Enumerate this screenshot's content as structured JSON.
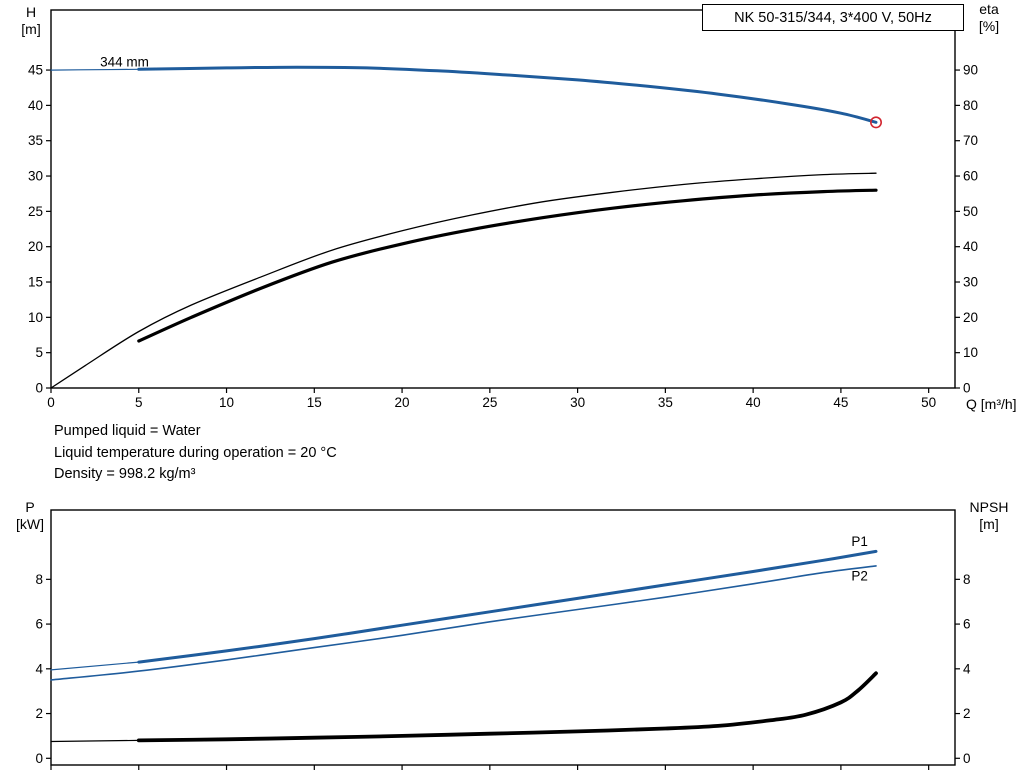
{
  "title_box": {
    "label": "NK 50-315/344, 3*400 V, 50Hz"
  },
  "info": {
    "lines": [
      "Pumped liquid = Water",
      "Liquid temperature during operation = 20 °C",
      "Density = 998.2 kg/m³"
    ]
  },
  "colors": {
    "curve_blue": "#1f5c9c",
    "curve_black": "#000000",
    "marker_red": "#d22630"
  },
  "chart_data": [
    {
      "type": "line",
      "name": "head-efficiency-chart",
      "x_axis": {
        "label": "Q [m³/h]",
        "lim": [
          0,
          51.5
        ],
        "ticks": [
          0,
          5,
          10,
          15,
          20,
          25,
          30,
          35,
          40,
          45,
          50
        ],
        "show_labels": true
      },
      "left_axis": {
        "label_lines": [
          "H",
          "[m]"
        ],
        "lim": [
          0,
          53.5
        ],
        "ticks": [
          0,
          5,
          10,
          15,
          20,
          25,
          30,
          35,
          40,
          45
        ]
      },
      "right_axis": {
        "label_lines": [
          "eta",
          "[%]"
        ],
        "lim": [
          0,
          107
        ],
        "ticks": [
          0,
          10,
          20,
          30,
          40,
          50,
          60,
          70,
          80,
          90
        ]
      },
      "series": [
        {
          "name": "head-344mm-lead",
          "axis": "left",
          "color": "#1f5c9c",
          "width": 1.2,
          "points": [
            [
              0,
              45
            ],
            [
              2.5,
              45.05
            ],
            [
              5,
              45.1
            ]
          ]
        },
        {
          "name": "head-344mm",
          "axis": "left",
          "color": "#1f5c9c",
          "width": 3,
          "points": [
            [
              5,
              45.1
            ],
            [
              10,
              45.3
            ],
            [
              14,
              45.4
            ],
            [
              18,
              45.3
            ],
            [
              22,
              44.9
            ],
            [
              26,
              44.3
            ],
            [
              30,
              43.6
            ],
            [
              34,
              42.7
            ],
            [
              38,
              41.6
            ],
            [
              42,
              40.2
            ],
            [
              45,
              38.9
            ],
            [
              47,
              37.6
            ]
          ]
        },
        {
          "name": "eta-thin",
          "axis": "right",
          "color": "#000000",
          "width": 1.3,
          "points": [
            [
              0,
              0
            ],
            [
              2,
              6.5
            ],
            [
              5,
              16
            ],
            [
              8,
              23.5
            ],
            [
              12,
              31.5
            ],
            [
              16,
              39
            ],
            [
              20,
              44.5
            ],
            [
              24,
              49
            ],
            [
              28,
              52.7
            ],
            [
              32,
              55.4
            ],
            [
              36,
              57.6
            ],
            [
              40,
              59.2
            ],
            [
              44,
              60.4
            ],
            [
              47,
              60.8
            ]
          ]
        },
        {
          "name": "eta-thick",
          "axis": "right",
          "color": "#000000",
          "width": 3.2,
          "points": [
            [
              5,
              13.3
            ],
            [
              8,
              20
            ],
            [
              12,
              28.3
            ],
            [
              16,
              35.6
            ],
            [
              20,
              40.8
            ],
            [
              24,
              44.9
            ],
            [
              28,
              48.2
            ],
            [
              32,
              50.9
            ],
            [
              36,
              53
            ],
            [
              40,
              54.6
            ],
            [
              44,
              55.6
            ],
            [
              47,
              56
            ]
          ]
        }
      ],
      "markers": [
        {
          "name": "duty-point-marker",
          "x": 47,
          "y": 37.6,
          "axis": "left",
          "r": 5.2,
          "color": "#d22630"
        }
      ],
      "annotations": [
        {
          "name": "impeller-diameter-label",
          "text": "344 mm",
          "x": 2.8,
          "y": 45.5,
          "axis": "left",
          "color": "#000000",
          "anchor": "start"
        }
      ]
    },
    {
      "type": "line",
      "name": "power-npsh-chart",
      "x_axis": {
        "label": "",
        "lim": [
          0,
          51.5
        ],
        "ticks": [
          0,
          5,
          10,
          15,
          20,
          25,
          30,
          35,
          40,
          45,
          50
        ],
        "show_labels": false
      },
      "left_axis": {
        "label_lines": [
          "P",
          "[kW]"
        ],
        "lim": [
          -0.3,
          11.1
        ],
        "ticks": [
          0,
          2,
          4,
          6,
          8
        ]
      },
      "right_axis": {
        "label_lines": [
          "NPSH",
          "[m]"
        ],
        "lim": [
          -0.3,
          11.1
        ],
        "ticks": [
          0,
          2,
          4,
          6,
          8
        ]
      },
      "series": [
        {
          "name": "p1-lead",
          "axis": "left",
          "color": "#1f5c9c",
          "width": 1.2,
          "points": [
            [
              0,
              3.95
            ],
            [
              5,
              4.3
            ]
          ]
        },
        {
          "name": "p1",
          "axis": "left",
          "color": "#1f5c9c",
          "width": 3,
          "points": [
            [
              5,
              4.3
            ],
            [
              10,
              4.8
            ],
            [
              15,
              5.35
            ],
            [
              20,
              5.95
            ],
            [
              25,
              6.55
            ],
            [
              30,
              7.15
            ],
            [
              35,
              7.75
            ],
            [
              40,
              8.35
            ],
            [
              44,
              8.85
            ],
            [
              47,
              9.25
            ]
          ]
        },
        {
          "name": "p2",
          "axis": "left",
          "color": "#1f5c9c",
          "width": 1.6,
          "points": [
            [
              0,
              3.5
            ],
            [
              5,
              3.9
            ],
            [
              10,
              4.4
            ],
            [
              15,
              4.95
            ],
            [
              20,
              5.5
            ],
            [
              25,
              6.1
            ],
            [
              30,
              6.65
            ],
            [
              35,
              7.2
            ],
            [
              40,
              7.8
            ],
            [
              44,
              8.3
            ],
            [
              47,
              8.6
            ]
          ]
        },
        {
          "name": "npsh-lead",
          "axis": "right",
          "color": "#000000",
          "width": 1.2,
          "points": [
            [
              0,
              0.75
            ],
            [
              5,
              0.8
            ]
          ]
        },
        {
          "name": "npsh",
          "axis": "right",
          "color": "#000000",
          "width": 3.8,
          "points": [
            [
              5,
              0.8
            ],
            [
              10,
              0.85
            ],
            [
              15,
              0.92
            ],
            [
              20,
              1.0
            ],
            [
              25,
              1.1
            ],
            [
              30,
              1.2
            ],
            [
              35,
              1.33
            ],
            [
              38,
              1.45
            ],
            [
              41,
              1.7
            ],
            [
              43,
              1.95
            ],
            [
              45,
              2.5
            ],
            [
              46,
              3.05
            ],
            [
              47,
              3.8
            ]
          ]
        }
      ],
      "markers": [],
      "annotations": [
        {
          "name": "p1-label",
          "text": "P1",
          "x": 45.6,
          "y": 9.5,
          "axis": "left",
          "color": "#1f5c9c",
          "anchor": "start"
        },
        {
          "name": "p2-label",
          "text": "P2",
          "x": 45.6,
          "y": 7.95,
          "axis": "left",
          "color": "#1f5c9c",
          "anchor": "start"
        }
      ]
    }
  ]
}
